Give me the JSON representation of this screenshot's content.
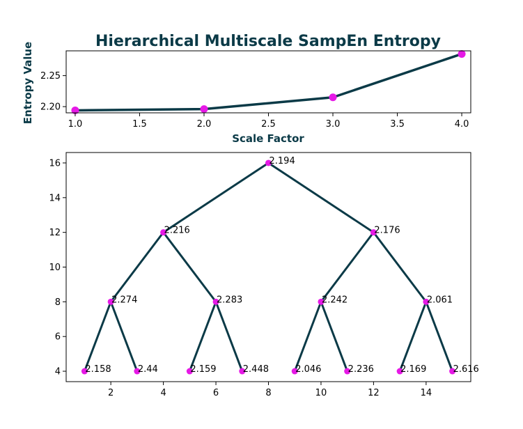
{
  "colors": {
    "line": "#0b3a47",
    "marker": "#e619e6"
  },
  "chart_data": [
    {
      "type": "line",
      "title": "Hierarchical Multiscale SampEn Entropy",
      "xlabel": "Scale Factor",
      "ylabel": "Entropy Value",
      "x": [
        1,
        2,
        3,
        4
      ],
      "values": [
        2.194,
        2.196,
        2.215,
        2.285
      ],
      "xlim": [
        0.93,
        4.07
      ],
      "ylim": [
        2.19,
        2.29
      ],
      "xticks": [
        "1.0",
        "1.5",
        "2.0",
        "2.5",
        "3.0",
        "3.5",
        "4.0"
      ],
      "yticks": [
        "2.20",
        "2.25"
      ],
      "grid": false
    },
    {
      "type": "tree",
      "xlim": [
        0.3,
        15.7
      ],
      "ylim": [
        3.4,
        16.6
      ],
      "xticks": [
        "2",
        "4",
        "6",
        "8",
        "10",
        "12",
        "14"
      ],
      "yticks": [
        "4",
        "6",
        "8",
        "10",
        "12",
        "14",
        "16"
      ],
      "grid": false,
      "nodes": [
        {
          "x": 8,
          "y": 16,
          "label": "2.194"
        },
        {
          "x": 4,
          "y": 12,
          "label": "2.216"
        },
        {
          "x": 12,
          "y": 12,
          "label": "2.176"
        },
        {
          "x": 2,
          "y": 8,
          "label": "2.274"
        },
        {
          "x": 6,
          "y": 8,
          "label": "2.283"
        },
        {
          "x": 10,
          "y": 8,
          "label": "2.242"
        },
        {
          "x": 14,
          "y": 8,
          "label": "2.061"
        },
        {
          "x": 1,
          "y": 4,
          "label": "2.158"
        },
        {
          "x": 3,
          "y": 4,
          "label": "2.44"
        },
        {
          "x": 5,
          "y": 4,
          "label": "2.159"
        },
        {
          "x": 7,
          "y": 4,
          "label": "2.448"
        },
        {
          "x": 9,
          "y": 4,
          "label": "2.046"
        },
        {
          "x": 11,
          "y": 4,
          "label": "2.236"
        },
        {
          "x": 13,
          "y": 4,
          "label": "2.169"
        },
        {
          "x": 15,
          "y": 4,
          "label": "2.616"
        }
      ],
      "edges": [
        [
          0,
          1
        ],
        [
          0,
          2
        ],
        [
          1,
          3
        ],
        [
          1,
          4
        ],
        [
          2,
          5
        ],
        [
          2,
          6
        ],
        [
          3,
          7
        ],
        [
          3,
          8
        ],
        [
          4,
          9
        ],
        [
          4,
          10
        ],
        [
          5,
          11
        ],
        [
          5,
          12
        ],
        [
          6,
          13
        ],
        [
          6,
          14
        ]
      ]
    }
  ]
}
